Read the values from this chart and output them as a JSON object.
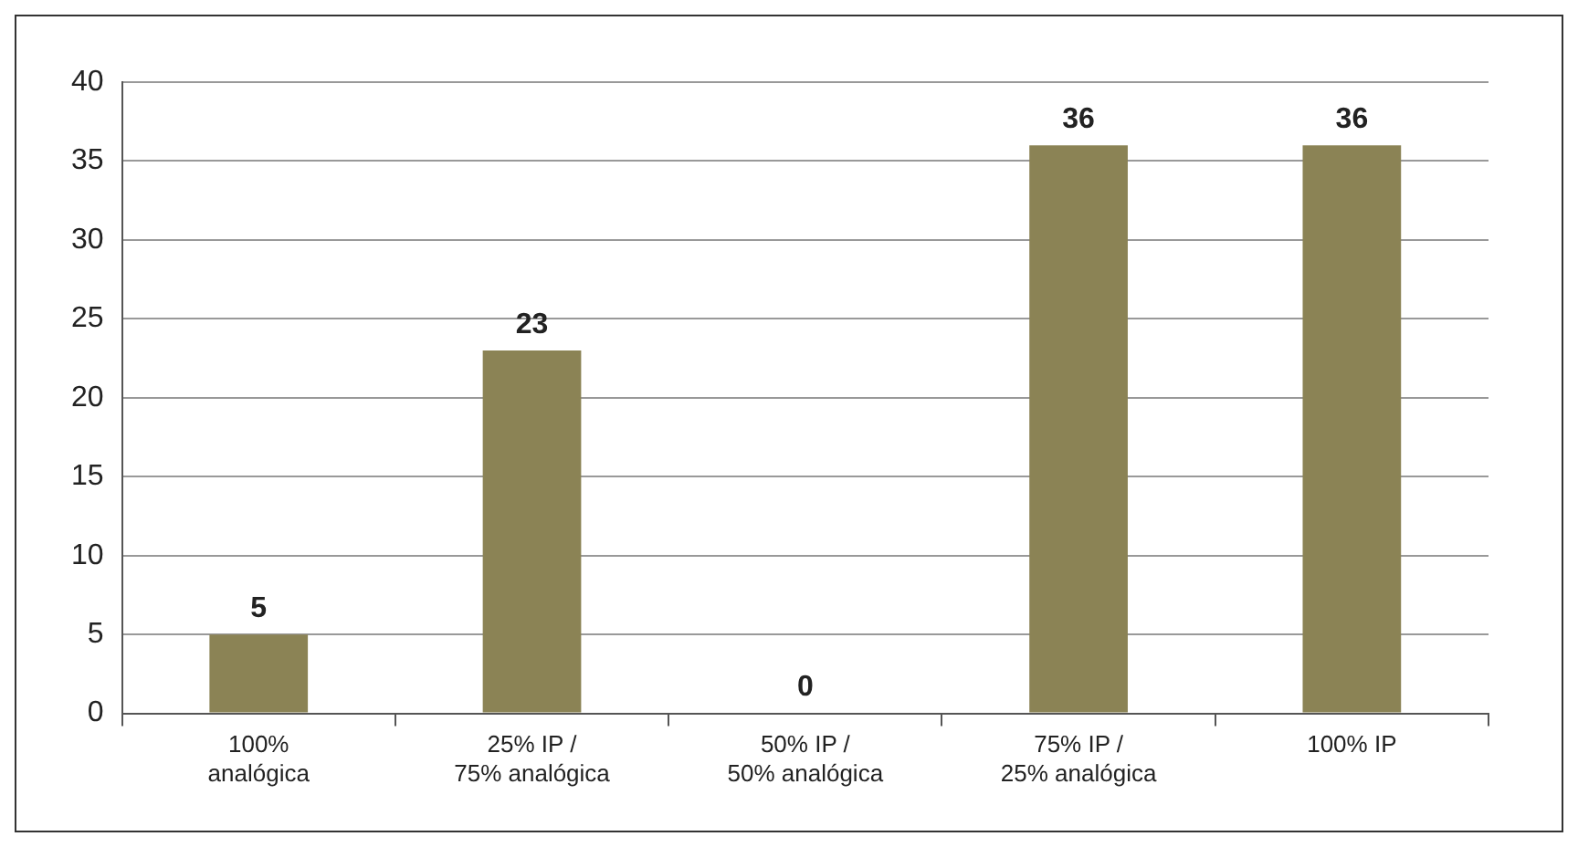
{
  "chart_data": {
    "type": "bar",
    "categories": [
      "100% analógica",
      "25% IP / 75% analógica",
      "50% IP / 50% analógica",
      "75% IP / 25% analógica",
      "100% IP"
    ],
    "values": [
      5,
      23,
      0,
      36,
      36
    ],
    "color": "#8b8355",
    "ylim": [
      0,
      40
    ],
    "yticks": [
      0,
      5,
      10,
      15,
      20,
      25,
      30,
      35,
      40
    ],
    "grid": "y",
    "data_labels": true,
    "legend": false
  }
}
